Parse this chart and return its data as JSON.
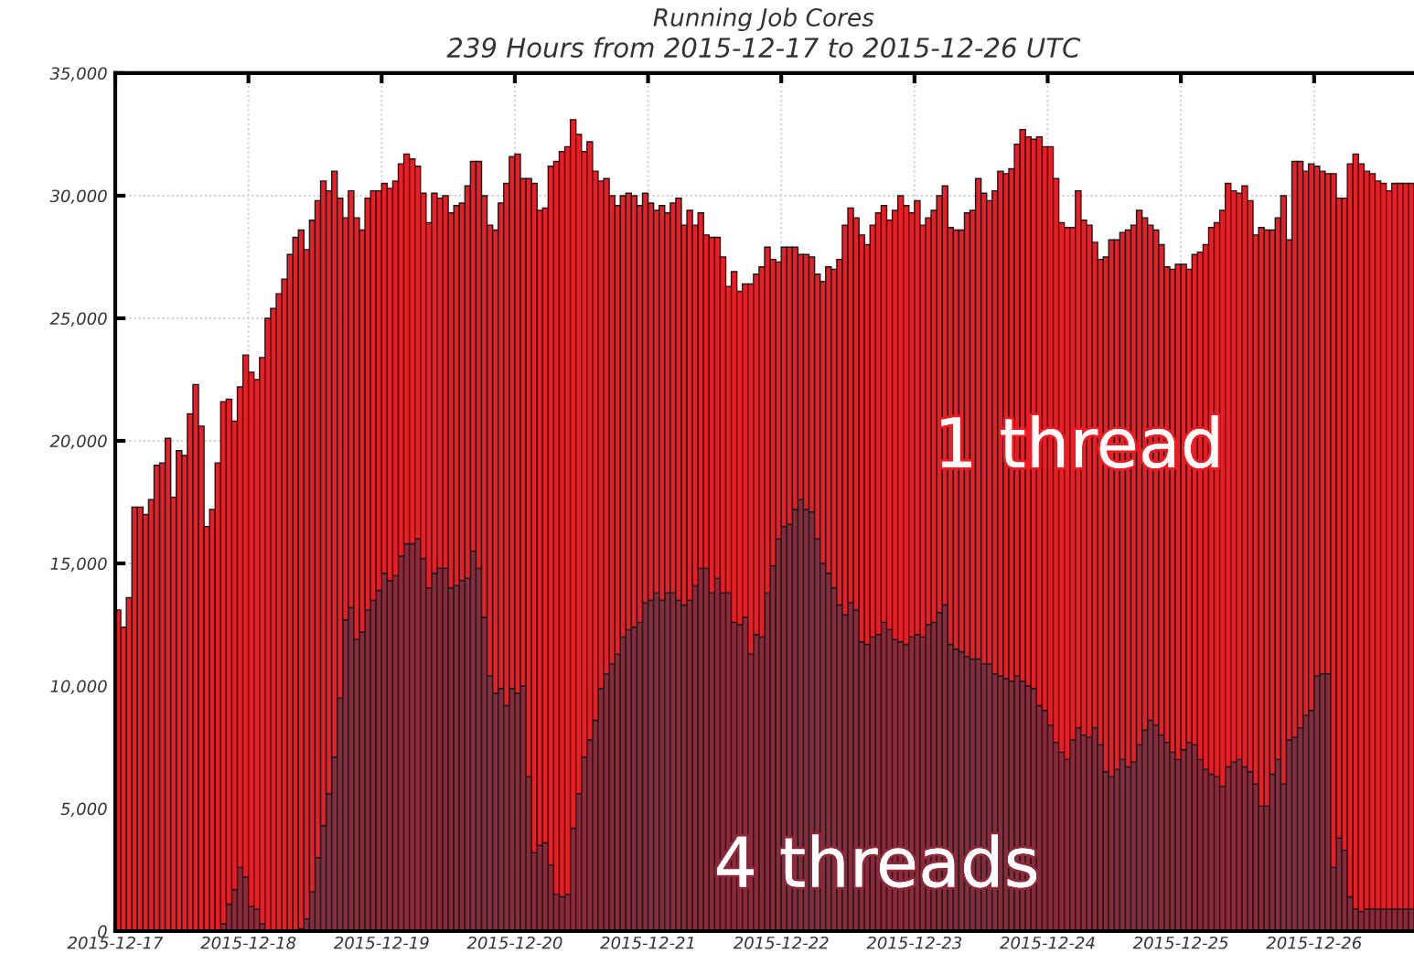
{
  "chart_data": {
    "type": "bar",
    "stacked": true,
    "title": "Running Job Cores",
    "subtitle": "239 Hours from 2015-12-17 to 2015-12-26 UTC",
    "grid": true,
    "x": [
      "2015-12-17T00:00",
      "2015-12-17T01:00",
      "2015-12-17T02:00",
      "2015-12-17T03:00",
      "2015-12-17T04:00",
      "2015-12-17T05:00",
      "2015-12-17T06:00",
      "2015-12-17T07:00",
      "2015-12-17T08:00",
      "2015-12-17T09:00",
      "2015-12-17T10:00",
      "2015-12-17T11:00",
      "2015-12-17T12:00",
      "2015-12-17T13:00",
      "2015-12-17T14:00",
      "2015-12-17T15:00",
      "2015-12-17T16:00",
      "2015-12-17T17:00",
      "2015-12-17T18:00",
      "2015-12-17T19:00",
      "2015-12-17T20:00",
      "2015-12-17T21:00",
      "2015-12-17T22:00",
      "2015-12-17T23:00",
      "2015-12-18T00:00",
      "2015-12-18T01:00",
      "2015-12-18T02:00",
      "2015-12-18T03:00",
      "2015-12-18T04:00",
      "2015-12-18T05:00",
      "2015-12-18T06:00",
      "2015-12-18T07:00",
      "2015-12-18T08:00",
      "2015-12-18T09:00",
      "2015-12-18T10:00",
      "2015-12-18T11:00",
      "2015-12-18T12:00",
      "2015-12-18T13:00",
      "2015-12-18T14:00",
      "2015-12-18T15:00",
      "2015-12-18T16:00",
      "2015-12-18T17:00",
      "2015-12-18T18:00",
      "2015-12-18T19:00",
      "2015-12-18T20:00",
      "2015-12-18T21:00",
      "2015-12-18T22:00",
      "2015-12-18T23:00",
      "2015-12-19T00:00",
      "2015-12-19T01:00",
      "2015-12-19T02:00",
      "2015-12-19T03:00",
      "2015-12-19T04:00",
      "2015-12-19T05:00",
      "2015-12-19T06:00",
      "2015-12-19T07:00",
      "2015-12-19T08:00",
      "2015-12-19T09:00",
      "2015-12-19T10:00",
      "2015-12-19T11:00",
      "2015-12-19T12:00",
      "2015-12-19T13:00",
      "2015-12-19T14:00",
      "2015-12-19T15:00",
      "2015-12-19T16:00",
      "2015-12-19T17:00",
      "2015-12-19T18:00",
      "2015-12-19T19:00",
      "2015-12-19T20:00",
      "2015-12-19T21:00",
      "2015-12-19T22:00",
      "2015-12-19T23:00",
      "2015-12-20T00:00",
      "2015-12-20T01:00",
      "2015-12-20T02:00",
      "2015-12-20T03:00",
      "2015-12-20T04:00",
      "2015-12-20T05:00",
      "2015-12-20T06:00",
      "2015-12-20T07:00",
      "2015-12-20T08:00",
      "2015-12-20T09:00",
      "2015-12-20T10:00",
      "2015-12-20T11:00",
      "2015-12-20T12:00",
      "2015-12-20T13:00",
      "2015-12-20T14:00",
      "2015-12-20T15:00",
      "2015-12-20T16:00",
      "2015-12-20T17:00",
      "2015-12-20T18:00",
      "2015-12-20T19:00",
      "2015-12-20T20:00",
      "2015-12-20T21:00",
      "2015-12-20T22:00",
      "2015-12-20T23:00",
      "2015-12-21T00:00",
      "2015-12-21T01:00",
      "2015-12-21T02:00",
      "2015-12-21T03:00",
      "2015-12-21T04:00",
      "2015-12-21T05:00",
      "2015-12-21T06:00",
      "2015-12-21T07:00",
      "2015-12-21T08:00",
      "2015-12-21T09:00",
      "2015-12-21T10:00",
      "2015-12-21T11:00",
      "2015-12-21T12:00",
      "2015-12-21T13:00",
      "2015-12-21T14:00",
      "2015-12-21T15:00",
      "2015-12-21T16:00",
      "2015-12-21T17:00",
      "2015-12-21T18:00",
      "2015-12-21T19:00",
      "2015-12-21T20:00",
      "2015-12-21T21:00",
      "2015-12-21T22:00",
      "2015-12-21T23:00",
      "2015-12-22T00:00",
      "2015-12-22T01:00",
      "2015-12-22T02:00",
      "2015-12-22T03:00",
      "2015-12-22T04:00",
      "2015-12-22T05:00",
      "2015-12-22T06:00",
      "2015-12-22T07:00",
      "2015-12-22T08:00",
      "2015-12-22T09:00",
      "2015-12-22T10:00",
      "2015-12-22T11:00",
      "2015-12-22T12:00",
      "2015-12-22T13:00",
      "2015-12-22T14:00",
      "2015-12-22T15:00",
      "2015-12-22T16:00",
      "2015-12-22T17:00",
      "2015-12-22T18:00",
      "2015-12-22T19:00",
      "2015-12-22T20:00",
      "2015-12-22T21:00",
      "2015-12-22T22:00",
      "2015-12-22T23:00",
      "2015-12-23T00:00",
      "2015-12-23T01:00",
      "2015-12-23T02:00",
      "2015-12-23T03:00",
      "2015-12-23T04:00",
      "2015-12-23T05:00",
      "2015-12-23T06:00",
      "2015-12-23T07:00",
      "2015-12-23T08:00",
      "2015-12-23T09:00",
      "2015-12-23T10:00",
      "2015-12-23T11:00",
      "2015-12-23T12:00",
      "2015-12-23T13:00",
      "2015-12-23T14:00",
      "2015-12-23T15:00",
      "2015-12-23T16:00",
      "2015-12-23T17:00",
      "2015-12-23T18:00",
      "2015-12-23T19:00",
      "2015-12-23T20:00",
      "2015-12-23T21:00",
      "2015-12-23T22:00",
      "2015-12-23T23:00",
      "2015-12-24T00:00",
      "2015-12-24T01:00",
      "2015-12-24T02:00",
      "2015-12-24T03:00",
      "2015-12-24T04:00",
      "2015-12-24T05:00",
      "2015-12-24T06:00",
      "2015-12-24T07:00",
      "2015-12-24T08:00",
      "2015-12-24T09:00",
      "2015-12-24T10:00",
      "2015-12-24T11:00",
      "2015-12-24T12:00",
      "2015-12-24T13:00",
      "2015-12-24T14:00",
      "2015-12-24T15:00",
      "2015-12-24T16:00",
      "2015-12-24T17:00",
      "2015-12-24T18:00",
      "2015-12-24T19:00",
      "2015-12-24T20:00",
      "2015-12-24T21:00",
      "2015-12-24T22:00",
      "2015-12-24T23:00",
      "2015-12-25T00:00",
      "2015-12-25T01:00",
      "2015-12-25T02:00",
      "2015-12-25T03:00",
      "2015-12-25T04:00",
      "2015-12-25T05:00",
      "2015-12-25T06:00",
      "2015-12-25T07:00",
      "2015-12-25T08:00",
      "2015-12-25T09:00",
      "2015-12-25T10:00",
      "2015-12-25T11:00",
      "2015-12-25T12:00",
      "2015-12-25T13:00",
      "2015-12-25T14:00",
      "2015-12-25T15:00",
      "2015-12-25T16:00",
      "2015-12-25T17:00",
      "2015-12-25T18:00",
      "2015-12-25T19:00",
      "2015-12-25T20:00",
      "2015-12-25T21:00",
      "2015-12-25T22:00",
      "2015-12-25T23:00",
      "2015-12-26T00:00",
      "2015-12-26T01:00",
      "2015-12-26T02:00",
      "2015-12-26T03:00",
      "2015-12-26T04:00",
      "2015-12-26T05:00",
      "2015-12-26T06:00",
      "2015-12-26T07:00",
      "2015-12-26T08:00",
      "2015-12-26T09:00",
      "2015-12-26T10:00",
      "2015-12-26T11:00",
      "2015-12-26T12:00",
      "2015-12-26T13:00",
      "2015-12-26T14:00",
      "2015-12-26T15:00",
      "2015-12-26T16:00",
      "2015-12-26T17:00"
    ],
    "xlim": [
      "2015-12-17T00:00",
      "2015-12-26T18:00"
    ],
    "xticks": [
      "2015-12-17",
      "2015-12-18",
      "2015-12-19",
      "2015-12-20",
      "2015-12-21",
      "2015-12-22",
      "2015-12-23",
      "2015-12-24",
      "2015-12-25",
      "2015-12-26"
    ],
    "ylim": [
      0,
      35000
    ],
    "yticks": [
      0,
      {
        "value": 5000,
        "label": "5,000"
      },
      {
        "value": 10000,
        "label": "10,000"
      },
      {
        "value": 15000,
        "label": "15,000"
      },
      {
        "value": 20000,
        "label": "20,000"
      },
      {
        "value": 25000,
        "label": "25,000"
      },
      {
        "value": 30000,
        "label": "30,000"
      },
      {
        "value": 35000,
        "label": "35,000"
      }
    ],
    "series": [
      {
        "name": "4 threads",
        "color": "#8c2a3c",
        "values": [
          0,
          0,
          0,
          0,
          0,
          0,
          0,
          0,
          0,
          0,
          0,
          0,
          0,
          0,
          0,
          0,
          0,
          0,
          0,
          300,
          1100,
          1700,
          2600,
          2200,
          1000,
          900,
          300,
          0,
          0,
          0,
          0,
          0,
          0,
          100,
          500,
          1600,
          3000,
          4300,
          5600,
          7100,
          9500,
          12700,
          13200,
          11900,
          12200,
          13100,
          13500,
          13900,
          14600,
          14300,
          14500,
          15300,
          15800,
          15800,
          16000,
          15200,
          14000,
          14600,
          14800,
          14800,
          14000,
          14100,
          14300,
          14400,
          15500,
          14800,
          12800,
          10400,
          9700,
          9900,
          9200,
          9900,
          9700,
          10000,
          6300,
          3200,
          3500,
          3600,
          2700,
          1500,
          1400,
          1500,
          4200,
          5600,
          7100,
          7800,
          8600,
          9900,
          10500,
          10900,
          11300,
          12000,
          12300,
          12400,
          12600,
          13400,
          13500,
          13800,
          13500,
          13800,
          13800,
          13500,
          13300,
          13500,
          14100,
          14800,
          14800,
          13800,
          14400,
          13800,
          13800,
          12600,
          12500,
          12800,
          11300,
          12100,
          12000,
          13800,
          14900,
          16000,
          16500,
          16600,
          17200,
          17600,
          17200,
          17100,
          16000,
          15000,
          14600,
          14000,
          13300,
          12900,
          13400,
          13100,
          11800,
          11700,
          12000,
          12100,
          12600,
          12300,
          11900,
          11800,
          11700,
          12000,
          12100,
          12000,
          12500,
          12600,
          13000,
          13300,
          11700,
          11500,
          11400,
          11200,
          11100,
          11100,
          10900,
          10900,
          10500,
          10400,
          10300,
          10200,
          10400,
          10200,
          10000,
          9900,
          9200,
          9000,
          8400,
          7700,
          7300,
          7000,
          7800,
          8300,
          8000,
          7900,
          8300,
          7600,
          6500,
          6300,
          6600,
          7000,
          6700,
          6900,
          7600,
          8200,
          8600,
          8400,
          8000,
          7700,
          7300,
          7000,
          7400,
          7700,
          7600,
          7000,
          6600,
          6400,
          6300,
          5900,
          6700,
          6900,
          7000,
          6700,
          6500,
          6000,
          5100,
          5100,
          6400,
          7000,
          6000,
          7800,
          7900,
          8300,
          8800,
          9000,
          10400,
          10500,
          10500,
          2600,
          3800,
          3300,
          1400,
          900,
          800,
          900,
          900,
          900,
          900,
          900,
          900,
          900,
          900,
          900
        ]
      },
      {
        "name": "1 thread",
        "color": "#ee1c24",
        "values": [
          13100,
          12400,
          13600,
          17300,
          17300,
          17000,
          17600,
          19000,
          19100,
          20100,
          17700,
          19600,
          19400,
          21100,
          22300,
          20600,
          16500,
          17200,
          19100,
          21300,
          20600,
          19100,
          19600,
          21300,
          21800,
          21600,
          23100,
          25000,
          25400,
          26000,
          26600,
          27600,
          28300,
          28500,
          27300,
          27400,
          26800,
          26300,
          24600,
          23900,
          20400,
          16400,
          17000,
          17200,
          16400,
          16800,
          16700,
          16300,
          15900,
          16000,
          16100,
          16000,
          15900,
          15700,
          15200,
          14900,
          14900,
          15500,
          15100,
          15200,
          15300,
          15500,
          15400,
          16000,
          15900,
          16600,
          17200,
          18400,
          18900,
          19800,
          21300,
          21700,
          22000,
          20700,
          24400,
          27300,
          25900,
          25900,
          28500,
          29900,
          30400,
          30500,
          28900,
          26900,
          24700,
          24400,
          22400,
          20700,
          20200,
          19100,
          18300,
          18000,
          17800,
          17600,
          17000,
          16700,
          16200,
          15600,
          16100,
          15500,
          15900,
          16400,
          15500,
          15900,
          14700,
          14500,
          13600,
          14500,
          13900,
          13700,
          12500,
          14300,
          13600,
          13600,
          15100,
          14700,
          15100,
          14100,
          12500,
          11300,
          11400,
          11300,
          10700,
          10000,
          10400,
          10400,
          10800,
          11500,
          12500,
          13000,
          14100,
          15900,
          16100,
          16000,
          16600,
          16300,
          16800,
          17200,
          17000,
          16700,
          17500,
          18200,
          17900,
          17300,
          17700,
          16800,
          16600,
          16800,
          17000,
          17100,
          17000,
          17100,
          17200,
          18100,
          18300,
          19600,
          19200,
          18900,
          19700,
          20600,
          20600,
          20900,
          21700,
          22500,
          22400,
          22400,
          23200,
          23000,
          23600,
          23000,
          21600,
          21700,
          20900,
          21900,
          21000,
          20900,
          19800,
          19800,
          21000,
          21900,
          21600,
          21500,
          21900,
          21900,
          21800,
          20900,
          20200,
          20200,
          20000,
          19400,
          19700,
          20200,
          19800,
          19300,
          20000,
          20700,
          21400,
          22300,
          22600,
          23500,
          23800,
          23300,
          23100,
          23700,
          23300,
          22400,
          23600,
          23500,
          22200,
          22100,
          24000,
          20400,
          23500,
          23100,
          22200,
          22300,
          20800,
          20500,
          20400,
          28300,
          26100,
          26600,
          29900,
          30800,
          30500,
          30100,
          30000,
          29700,
          29600,
          29300,
          29600,
          29600,
          29600,
          29600
        ]
      }
    ]
  }
}
